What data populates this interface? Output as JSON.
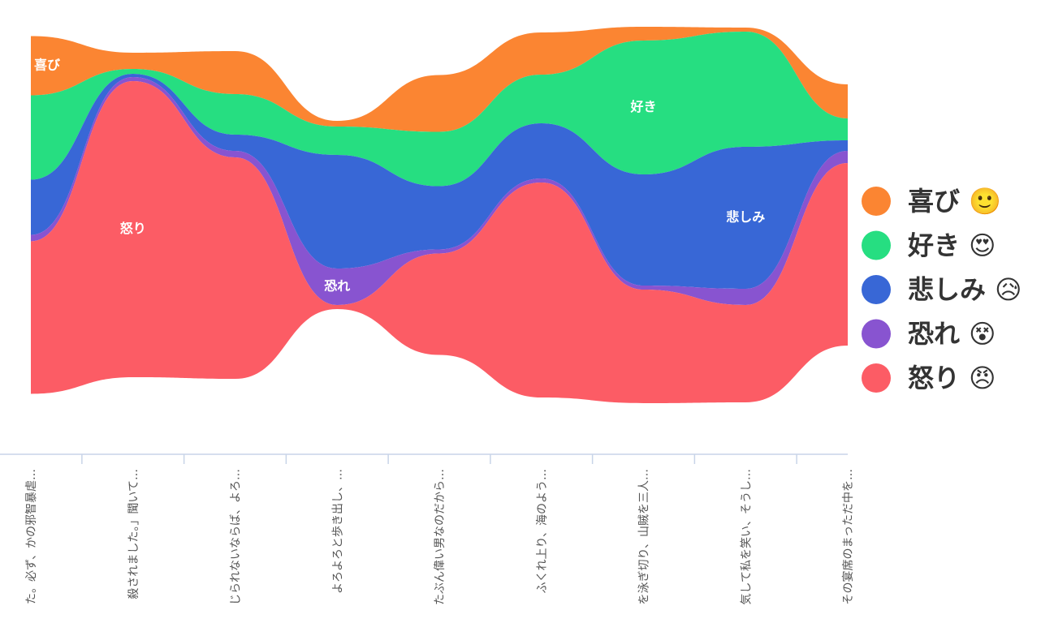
{
  "chart_data": {
    "type": "streamgraph",
    "categories": [
      "た。必ず、かの邪智暴虐…",
      "殺されました。」聞いて…",
      "じられないならば、よろ…",
      "よろよろと歩き出し、…",
      "たぶん偉い男なのだから…",
      "ふくれ上り、海のよう…",
      "を泳ぎ切り、山賊を三人…",
      "気して私を笑い、そうし…",
      "その宴席のまっただ中を…"
    ],
    "series": [
      {
        "name": "喜び",
        "icon": "🙂",
        "color": "#fb8532",
        "values": [
          73,
          20,
          53,
          7,
          70,
          52,
          17,
          5,
          42
        ]
      },
      {
        "name": "好き",
        "icon": "😍",
        "color": "#26de81",
        "values": [
          104,
          6,
          50,
          35,
          67,
          60,
          165,
          142,
          27
        ]
      },
      {
        "name": "悲しみ",
        "icon": "😥",
        "color": "#3867d6",
        "values": [
          68,
          4,
          20,
          140,
          78,
          68,
          137,
          175,
          13
        ]
      },
      {
        "name": "恐れ",
        "icon": "😵",
        "color": "#8854d0",
        "values": [
          8,
          5,
          8,
          45,
          5,
          5,
          5,
          20,
          15
        ]
      },
      {
        "name": "怒り",
        "icon": "😠",
        "color": "#fc5c65",
        "values": [
          188,
          365,
          273,
          5,
          125,
          265,
          140,
          120,
          225
        ]
      }
    ]
  }
}
